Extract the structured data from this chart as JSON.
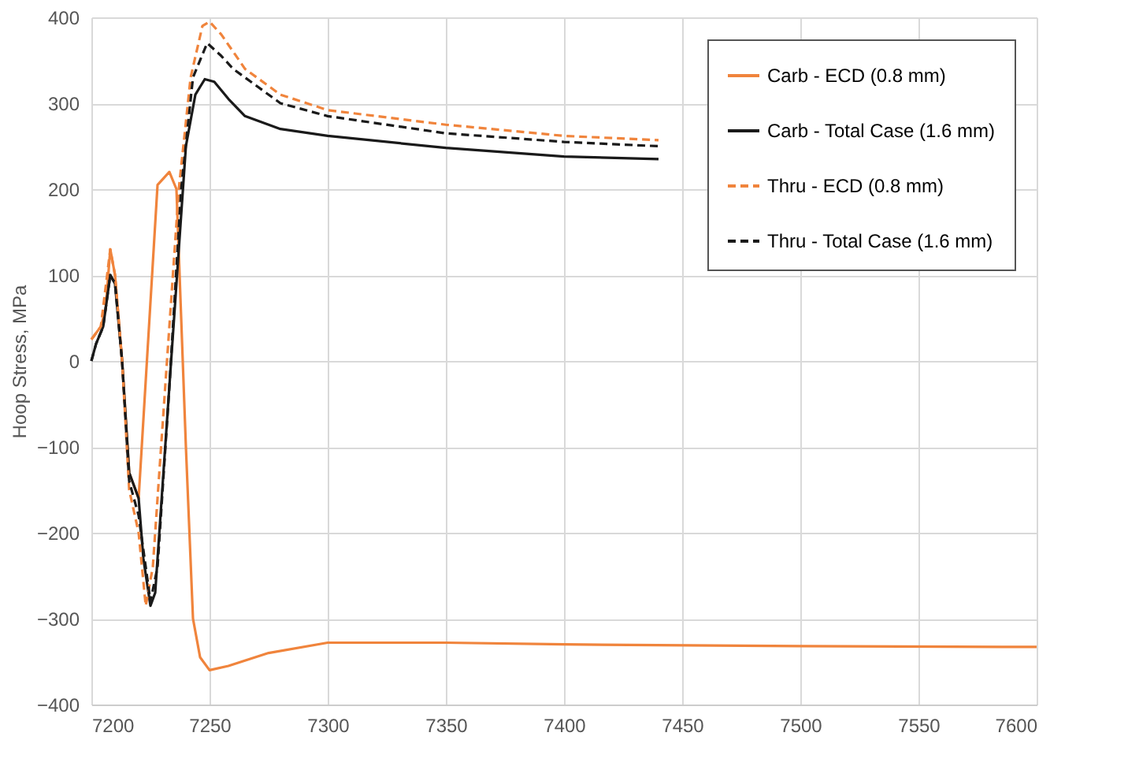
{
  "chart_data": {
    "type": "line",
    "ylabel": "Hoop Stress, MPa",
    "xlim": [
      7200,
      7600
    ],
    "xticks": [
      7200,
      7250,
      7300,
      7350,
      7400,
      7450,
      7500,
      7550,
      7600
    ],
    "ylim": [
      -400,
      400
    ],
    "yticks": [
      -400,
      -300,
      -200,
      -100,
      0,
      100,
      200,
      300,
      400
    ],
    "grid": true,
    "legend": "top right",
    "marker": "none",
    "series": [
      {
        "name": "Carb - ECD (0.8 mm)",
        "color": "#f0843c",
        "line_style": "solid",
        "x": [
          7200,
          7204,
          7206,
          7208,
          7210,
          7213,
          7216,
          7220,
          7228,
          7233,
          7236,
          7240,
          7243,
          7246,
          7250,
          7258,
          7275,
          7300,
          7350,
          7400,
          7500,
          7600
        ],
        "values": [
          25,
          40,
          60,
          130,
          100,
          0,
          -130,
          -160,
          205,
          220,
          200,
          -100,
          -300,
          -345,
          -360,
          -355,
          -340,
          -328,
          -328,
          -330,
          -332,
          -333
        ]
      },
      {
        "name": "Carb - Total Case (1.6 mm)",
        "color": "#1a1a1a",
        "line_style": "solid",
        "x": [
          7200,
          7202,
          7205,
          7208,
          7210,
          7213,
          7216,
          7220,
          7222,
          7225,
          7227,
          7230,
          7235,
          7240,
          7244,
          7248,
          7252,
          7258,
          7265,
          7280,
          7300,
          7350,
          7400,
          7440
        ],
        "values": [
          0,
          20,
          40,
          100,
          90,
          0,
          -130,
          -160,
          -230,
          -285,
          -270,
          -150,
          50,
          250,
          310,
          328,
          325,
          305,
          285,
          270,
          262,
          248,
          238,
          235
        ]
      },
      {
        "name": "Thru - ECD (0.8 mm)",
        "color": "#f0843c",
        "line_style": "dashed",
        "x": [
          7200,
          7204,
          7208,
          7210,
          7213,
          7216,
          7220,
          7223,
          7226,
          7232,
          7237,
          7242,
          7247,
          7250,
          7255,
          7265,
          7280,
          7300,
          7350,
          7400,
          7440
        ],
        "values": [
          25,
          40,
          130,
          100,
          0,
          -150,
          -200,
          -285,
          -240,
          0,
          200,
          330,
          390,
          395,
          380,
          340,
          310,
          292,
          275,
          262,
          257
        ]
      },
      {
        "name": "Thru - Total Case (1.6 mm)",
        "color": "#1a1a1a",
        "line_style": "dashed",
        "x": [
          7200,
          7202,
          7205,
          7208,
          7210,
          7213,
          7216,
          7220,
          7225,
          7228,
          7233,
          7238,
          7243,
          7249,
          7255,
          7260,
          7280,
          7300,
          7350,
          7400,
          7440
        ],
        "values": [
          0,
          20,
          40,
          100,
          90,
          0,
          -140,
          -180,
          -280,
          -240,
          -30,
          200,
          330,
          370,
          355,
          340,
          300,
          285,
          265,
          255,
          250
        ]
      }
    ]
  }
}
